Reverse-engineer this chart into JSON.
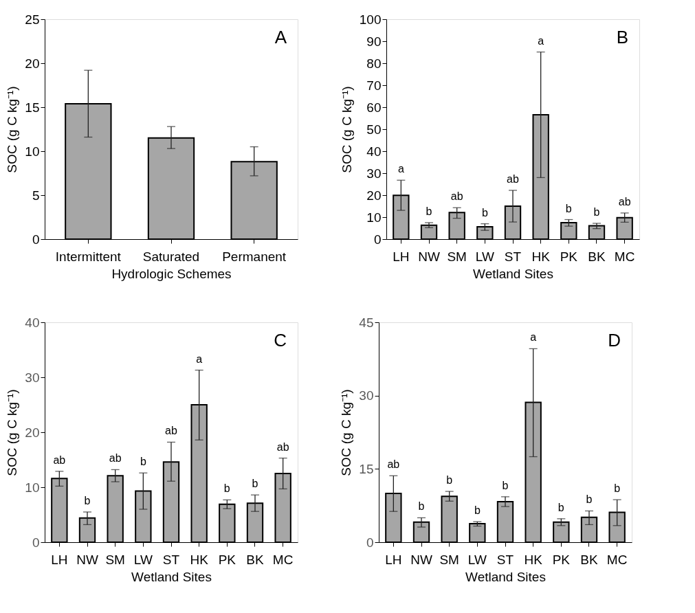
{
  "chart_data": [
    {
      "type": "bar",
      "title": "A",
      "xlabel": "Hydrologic Schemes",
      "ylabel": "SOC (g C kg⁻¹)",
      "categories": [
        "Intermittent",
        "Saturated",
        "Permanent"
      ],
      "series": [
        {
          "color": "#a6a6a6",
          "values": [
            15.4,
            11.5,
            8.8
          ],
          "errors": [
            [
              11.6,
              19.2
            ],
            [
              10.3,
              12.8
            ],
            [
              7.2,
              10.5
            ]
          ]
        }
      ],
      "ylim": [
        0,
        25
      ],
      "yticks": [
        0,
        5,
        10,
        15,
        20,
        25
      ],
      "grid": false
    },
    {
      "type": "bar",
      "title": "B",
      "xlabel": "Wetland Sites",
      "ylabel": "SOC (g C kg⁻¹)",
      "categories": [
        "LH",
        "NW",
        "SM",
        "LW",
        "ST",
        "HK",
        "PK",
        "BK",
        "MC"
      ],
      "series": [
        {
          "color": "#a6a6a6",
          "values": [
            19.9,
            6.3,
            12.1,
            5.6,
            15.0,
            56.6,
            7.5,
            6.1,
            9.8
          ],
          "errors": [
            [
              13.1,
              26.8
            ],
            [
              5.2,
              7.5
            ],
            [
              9.5,
              14.3
            ],
            [
              4.0,
              7.0
            ],
            [
              7.8,
              22.2
            ],
            [
              28.0,
              85.1
            ],
            [
              5.9,
              8.9
            ],
            [
              4.8,
              7.2
            ],
            [
              7.7,
              11.9
            ]
          ]
        }
      ],
      "annotations": [
        {
          "text": "a",
          "x": "LH",
          "y": 26.8
        },
        {
          "text": "b",
          "x": "NW",
          "y": 7.5
        },
        {
          "text": "ab",
          "x": "SM",
          "y": 14.3
        },
        {
          "text": "b",
          "x": "LW",
          "y": 7.0
        },
        {
          "text": "ab",
          "x": "ST",
          "y": 22.2
        },
        {
          "text": "a",
          "x": "HK",
          "y": 85.1
        },
        {
          "text": "b",
          "x": "PK",
          "y": 8.9
        },
        {
          "text": "b",
          "x": "BK",
          "y": 7.2
        },
        {
          "text": "ab",
          "x": "MC",
          "y": 11.9
        }
      ],
      "ylim": [
        0,
        100
      ],
      "yticks": [
        0,
        10,
        20,
        30,
        40,
        50,
        60,
        70,
        80,
        90,
        100
      ],
      "grid": false
    },
    {
      "type": "bar",
      "title": "C",
      "xlabel": "Wetland Sites",
      "ylabel": "SOC (g C kg⁻¹)",
      "categories": [
        "LH",
        "NW",
        "SM",
        "LW",
        "ST",
        "HK",
        "PK",
        "BK",
        "MC"
      ],
      "series": [
        {
          "color": "#a6a6a6",
          "values": [
            11.6,
            4.4,
            12.1,
            9.3,
            14.6,
            25.0,
            6.9,
            7.1,
            12.5
          ],
          "errors": [
            [
              10.2,
              12.9
            ],
            [
              3.2,
              5.5
            ],
            [
              11.0,
              13.2
            ],
            [
              6.0,
              12.6
            ],
            [
              11.1,
              18.2
            ],
            [
              18.6,
              31.3
            ],
            [
              6.1,
              7.7
            ],
            [
              5.6,
              8.6
            ],
            [
              9.7,
              15.3
            ]
          ]
        }
      ],
      "annotations": [
        {
          "text": "ab",
          "x": "LH",
          "y": 12.9
        },
        {
          "text": "b",
          "x": "NW",
          "y": 5.5
        },
        {
          "text": "ab",
          "x": "SM",
          "y": 13.2
        },
        {
          "text": "b",
          "x": "LW",
          "y": 12.6
        },
        {
          "text": "ab",
          "x": "ST",
          "y": 18.2
        },
        {
          "text": "a",
          "x": "HK",
          "y": 31.3
        },
        {
          "text": "b",
          "x": "PK",
          "y": 7.7
        },
        {
          "text": "b",
          "x": "BK",
          "y": 8.6
        },
        {
          "text": "ab",
          "x": "MC",
          "y": 15.3
        }
      ],
      "ylim": [
        0,
        40
      ],
      "yticks": [
        0,
        10,
        20,
        30,
        40
      ],
      "grid": false
    },
    {
      "type": "bar",
      "title": "D",
      "xlabel": "Wetland Sites",
      "ylabel": "SOC (g C kg⁻¹)",
      "categories": [
        "LH",
        "NW",
        "SM",
        "LW",
        "ST",
        "HK",
        "PK",
        "BK",
        "MC"
      ],
      "series": [
        {
          "color": "#a6a6a6",
          "values": [
            10.0,
            4.1,
            9.4,
            3.8,
            8.3,
            28.6,
            4.1,
            5.1,
            6.1
          ],
          "errors": [
            [
              6.3,
              13.6
            ],
            [
              3.1,
              5.0
            ],
            [
              8.4,
              10.4
            ],
            [
              3.3,
              4.2
            ],
            [
              7.3,
              9.3
            ],
            [
              17.5,
              39.6
            ],
            [
              3.4,
              4.8
            ],
            [
              3.6,
              6.4
            ],
            [
              3.4,
              8.7
            ]
          ]
        }
      ],
      "annotations": [
        {
          "text": "ab",
          "x": "LH",
          "y": 13.6
        },
        {
          "text": "b",
          "x": "NW",
          "y": 5.0
        },
        {
          "text": "b",
          "x": "SM",
          "y": 10.4
        },
        {
          "text": "b",
          "x": "LW",
          "y": 4.2
        },
        {
          "text": "b",
          "x": "ST",
          "y": 9.3
        },
        {
          "text": "a",
          "x": "HK",
          "y": 39.6
        },
        {
          "text": "b",
          "x": "PK",
          "y": 4.8
        },
        {
          "text": "b",
          "x": "BK",
          "y": 6.4
        },
        {
          "text": "b",
          "x": "MC",
          "y": 8.7
        }
      ],
      "ylim": [
        0,
        45
      ],
      "yticks": [
        0,
        15,
        30,
        45
      ],
      "grid": false
    }
  ]
}
